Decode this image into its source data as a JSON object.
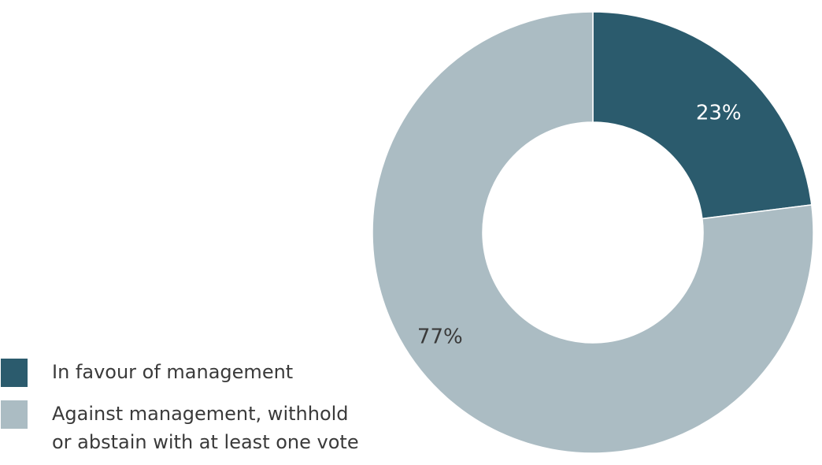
{
  "chart_data": {
    "type": "pie",
    "donut": true,
    "categories": [
      "In favour of management",
      "Against management, withhold or abstain with at least one vote"
    ],
    "values": [
      23,
      77
    ],
    "data_labels": [
      "23%",
      "77%"
    ],
    "colors": [
      "#2b5b6d",
      "#abbcc3"
    ],
    "label_colors": [
      "#ffffff",
      "#3a3a3a"
    ],
    "legend_position": "bottom-left",
    "title": "",
    "xlabel": "",
    "ylabel": ""
  },
  "legend": {
    "items": [
      {
        "label": "In favour of management",
        "color": "#2b5b6d"
      },
      {
        "label": "Against management, withhold\nor abstain with at least one vote",
        "color": "#abbcc3"
      }
    ]
  }
}
